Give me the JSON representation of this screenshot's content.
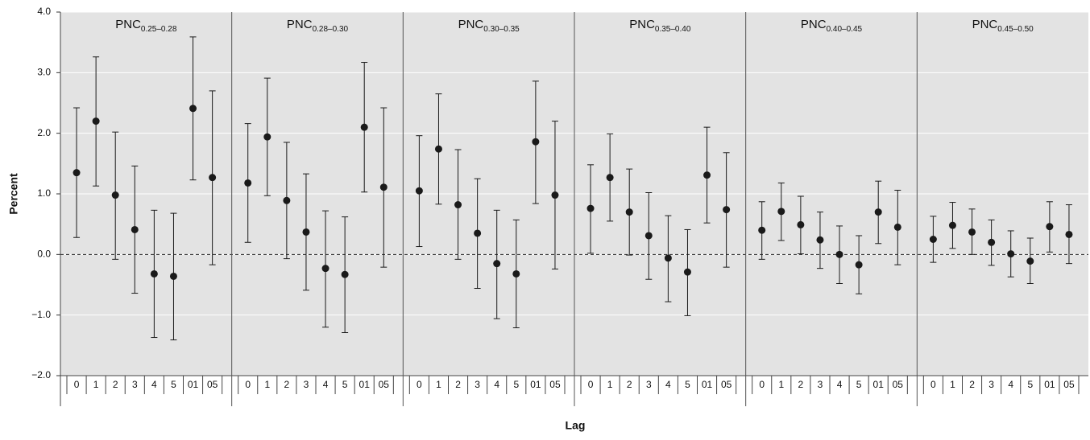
{
  "chart_data": {
    "type": "errorbar",
    "ylabel": "Percent",
    "xlabel": "Lag",
    "ylim": [
      -2,
      4
    ],
    "yticks": [
      {
        "value": -2,
        "label": "−2.0"
      },
      {
        "value": -1,
        "label": "−1.0"
      },
      {
        "value": 0,
        "label": "0.0"
      },
      {
        "value": 1,
        "label": "1.0"
      },
      {
        "value": 2,
        "label": "2.0"
      },
      {
        "value": 3,
        "label": "3.0"
      },
      {
        "value": 4,
        "label": "4.0"
      }
    ],
    "grid": true,
    "color": "#1a1a1a",
    "reference_line": 0,
    "panels": [
      {
        "label": "PNC",
        "subscript": "0.25–0.28",
        "categories": [
          "0",
          "1",
          "2",
          "3",
          "4",
          "5",
          "01",
          "05"
        ],
        "values": [
          1.35,
          2.2,
          0.98,
          0.41,
          -0.32,
          -0.36,
          2.41,
          1.27
        ],
        "lower": [
          0.28,
          1.13,
          -0.08,
          -0.64,
          -1.37,
          -1.41,
          1.23,
          -0.17
        ],
        "upper": [
          2.42,
          3.26,
          2.02,
          1.46,
          0.73,
          0.68,
          3.59,
          2.7
        ]
      },
      {
        "label": "PNC",
        "subscript": "0.28–0.30",
        "categories": [
          "0",
          "1",
          "2",
          "3",
          "4",
          "5",
          "01",
          "05"
        ],
        "values": [
          1.18,
          1.94,
          0.89,
          0.37,
          -0.23,
          -0.33,
          2.1,
          1.11
        ],
        "lower": [
          0.2,
          0.97,
          -0.07,
          -0.59,
          -1.2,
          -1.29,
          1.03,
          -0.21
        ],
        "upper": [
          2.16,
          2.91,
          1.85,
          1.33,
          0.72,
          0.62,
          3.17,
          2.42
        ]
      },
      {
        "label": "PNC",
        "subscript": "0.30–0.35",
        "categories": [
          "0",
          "1",
          "2",
          "3",
          "4",
          "5",
          "01",
          "05"
        ],
        "values": [
          1.05,
          1.74,
          0.82,
          0.35,
          -0.15,
          -0.32,
          1.86,
          0.98
        ],
        "lower": [
          0.13,
          0.83,
          -0.08,
          -0.56,
          -1.06,
          -1.21,
          0.84,
          -0.24
        ],
        "upper": [
          1.96,
          2.65,
          1.73,
          1.25,
          0.73,
          0.57,
          2.86,
          2.2
        ]
      },
      {
        "label": "PNC",
        "subscript": "0.35–0.40",
        "categories": [
          "0",
          "1",
          "2",
          "3",
          "4",
          "5",
          "01",
          "05"
        ],
        "values": [
          0.76,
          1.27,
          0.7,
          0.31,
          -0.06,
          -0.29,
          1.31,
          0.74
        ],
        "lower": [
          0.02,
          0.55,
          -0.01,
          -0.41,
          -0.78,
          -1.01,
          0.52,
          -0.21
        ],
        "upper": [
          1.48,
          1.99,
          1.41,
          1.02,
          0.64,
          0.41,
          2.1,
          1.68
        ]
      },
      {
        "label": "PNC",
        "subscript": "0.40–0.45",
        "categories": [
          "0",
          "1",
          "2",
          "3",
          "4",
          "5",
          "01",
          "05"
        ],
        "values": [
          0.4,
          0.71,
          0.49,
          0.24,
          0,
          -0.17,
          0.7,
          0.45
        ],
        "lower": [
          -0.08,
          0.23,
          0.01,
          -0.23,
          -0.48,
          -0.65,
          0.18,
          -0.17
        ],
        "upper": [
          0.87,
          1.18,
          0.96,
          0.7,
          0.47,
          0.31,
          1.21,
          1.06
        ]
      },
      {
        "label": "PNC",
        "subscript": "0.45–0.50",
        "categories": [
          "0",
          "1",
          "2",
          "3",
          "4",
          "5",
          "01",
          "05"
        ],
        "values": [
          0.25,
          0.48,
          0.37,
          0.2,
          0.01,
          -0.11,
          0.46,
          0.33
        ],
        "lower": [
          -0.13,
          0.1,
          0,
          -0.18,
          -0.37,
          -0.48,
          0.04,
          -0.15
        ],
        "upper": [
          0.63,
          0.86,
          0.75,
          0.57,
          0.39,
          0.27,
          0.87,
          0.82
        ]
      }
    ]
  }
}
